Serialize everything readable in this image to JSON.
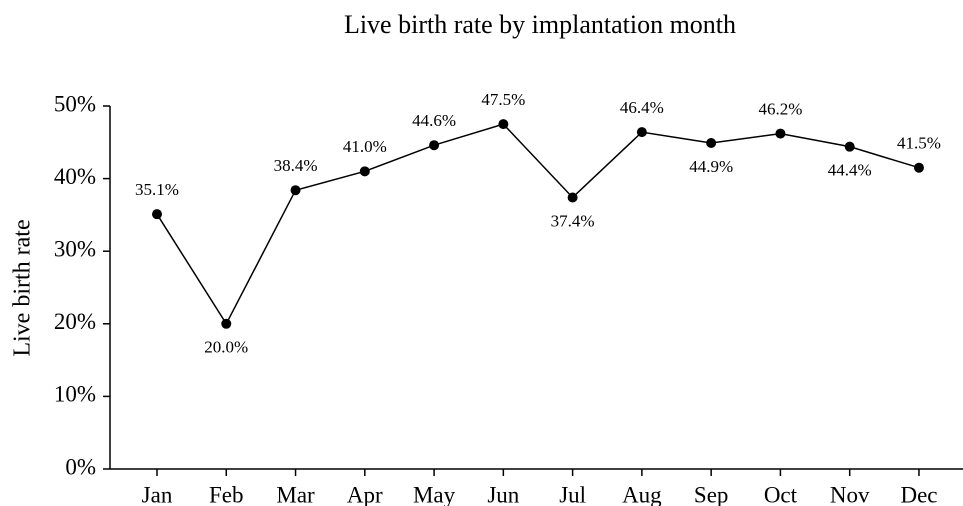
{
  "chart_data": {
    "type": "line",
    "title": "Live birth rate by implantation month",
    "y_label": "Live birth rate",
    "categories": [
      "Jan",
      "Feb",
      "Mar",
      "Apr",
      "May",
      "Jun",
      "Jul",
      "Aug",
      "Sep",
      "Oct",
      "Nov",
      "Dec"
    ],
    "series": [
      {
        "name": "Live birth rate",
        "color": "#000000",
        "values": [
          35.1,
          20.0,
          38.4,
          41.0,
          44.6,
          47.5,
          37.4,
          46.4,
          44.9,
          46.2,
          44.4,
          41.5
        ],
        "value_labels": [
          "35.1%",
          "20.0%",
          "38.4%",
          "41.0%",
          "44.6%",
          "47.5%",
          "37.4%",
          "46.4%",
          "44.9%",
          "46.2%",
          "44.4%",
          "41.5%"
        ]
      }
    ],
    "ylim": [
      0,
      50
    ],
    "yticks": [
      {
        "value": 0,
        "label": "0%"
      },
      {
        "value": 10,
        "label": "10%"
      },
      {
        "value": 20,
        "label": "20%"
      },
      {
        "value": 30,
        "label": "30%"
      },
      {
        "value": 40,
        "label": "40%"
      },
      {
        "value": 50,
        "label": "50%"
      }
    ]
  }
}
